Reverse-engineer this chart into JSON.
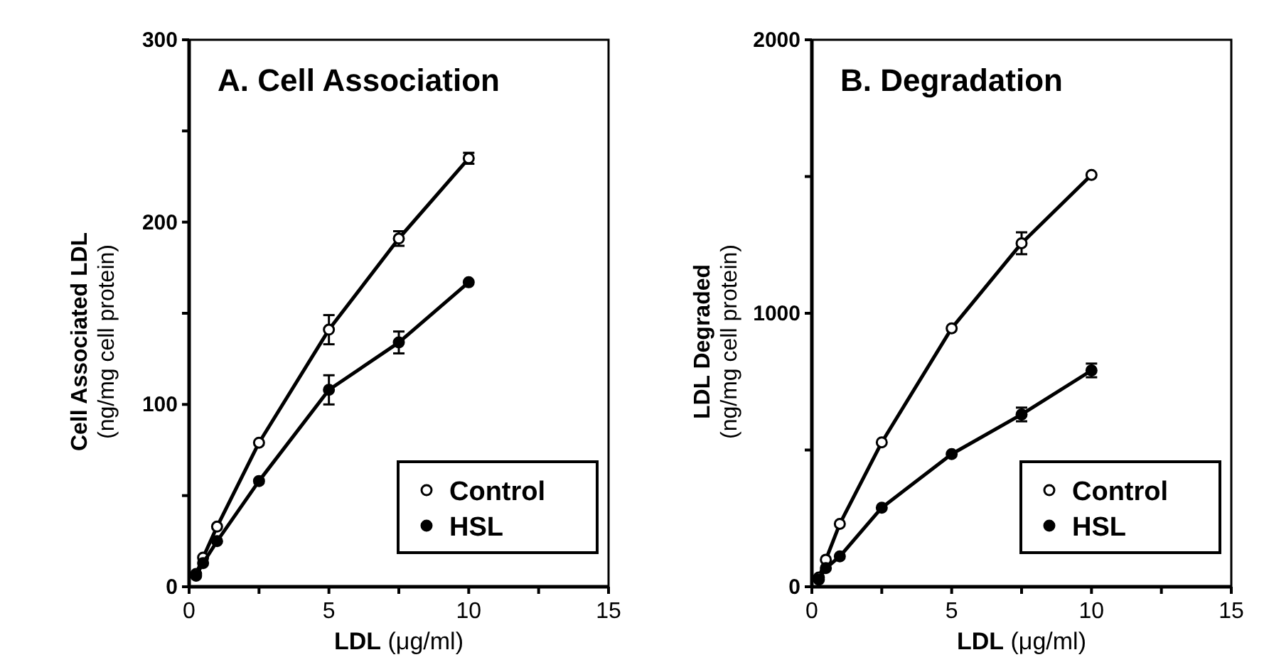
{
  "chart_data": [
    {
      "type": "line",
      "title": "A.  Cell Association",
      "xlabel": "LDL (μg/ml)",
      "ylabel": "Cell Associated LDL\n(ng/mg cell protein)",
      "x": [
        0.25,
        0.5,
        1,
        2.5,
        5,
        7.5,
        10
      ],
      "xlim": [
        0,
        15
      ],
      "xticks": [
        0,
        {
          "value": 2.5,
          "label": null
        },
        5,
        {
          "value": 7.5,
          "label": null
        },
        10,
        {
          "value": 12.5,
          "label": null
        },
        15
      ],
      "ylim": [
        0,
        300
      ],
      "yticks": [
        0,
        {
          "value": 50,
          "label": null
        },
        100,
        {
          "value": 150,
          "label": null
        },
        200,
        {
          "value": 250,
          "label": null
        },
        300
      ],
      "marker": "circle",
      "legend": "bottom right",
      "grid": false,
      "series": [
        {
          "name": "Control",
          "color": "#000000",
          "values": [
            7,
            16,
            33,
            79,
            141,
            191,
            235
          ],
          "errors": [
            null,
            null,
            null,
            null,
            8,
            4,
            3
          ]
        },
        {
          "name": "HSL",
          "color": "#000000",
          "values": [
            6,
            13,
            25,
            58,
            108,
            134,
            167
          ],
          "errors": [
            null,
            null,
            null,
            null,
            8,
            6,
            null
          ]
        }
      ]
    },
    {
      "type": "line",
      "title": "B.  Degradation",
      "xlabel": "LDL (μg/ml)",
      "ylabel": "LDL Degraded\n(ng/mg cell protein)",
      "x": [
        0.25,
        0.5,
        1,
        2.5,
        5,
        7.5,
        10
      ],
      "xlim": [
        0,
        15
      ],
      "xticks": [
        0,
        {
          "value": 2.5,
          "label": null
        },
        5,
        {
          "value": 7.5,
          "label": null
        },
        10,
        {
          "value": 12.5,
          "label": null
        },
        15
      ],
      "ylim": [
        0,
        2000
      ],
      "yticks": [
        0,
        {
          "value": 500,
          "label": null
        },
        1000,
        {
          "value": 1500,
          "label": null
        },
        2000
      ],
      "marker": "circle",
      "legend": "bottom right",
      "grid": false,
      "series": [
        {
          "name": "Control",
          "color": "#000000",
          "values": [
            34,
            99,
            230,
            528,
            945,
            1256,
            1506
          ],
          "errors": [
            null,
            null,
            null,
            null,
            null,
            40,
            null
          ]
        },
        {
          "name": "HSL",
          "color": "#000000",
          "values": [
            26,
            68,
            111,
            289,
            485,
            630,
            791
          ],
          "errors": [
            null,
            null,
            null,
            null,
            null,
            25,
            25
          ]
        }
      ]
    }
  ]
}
